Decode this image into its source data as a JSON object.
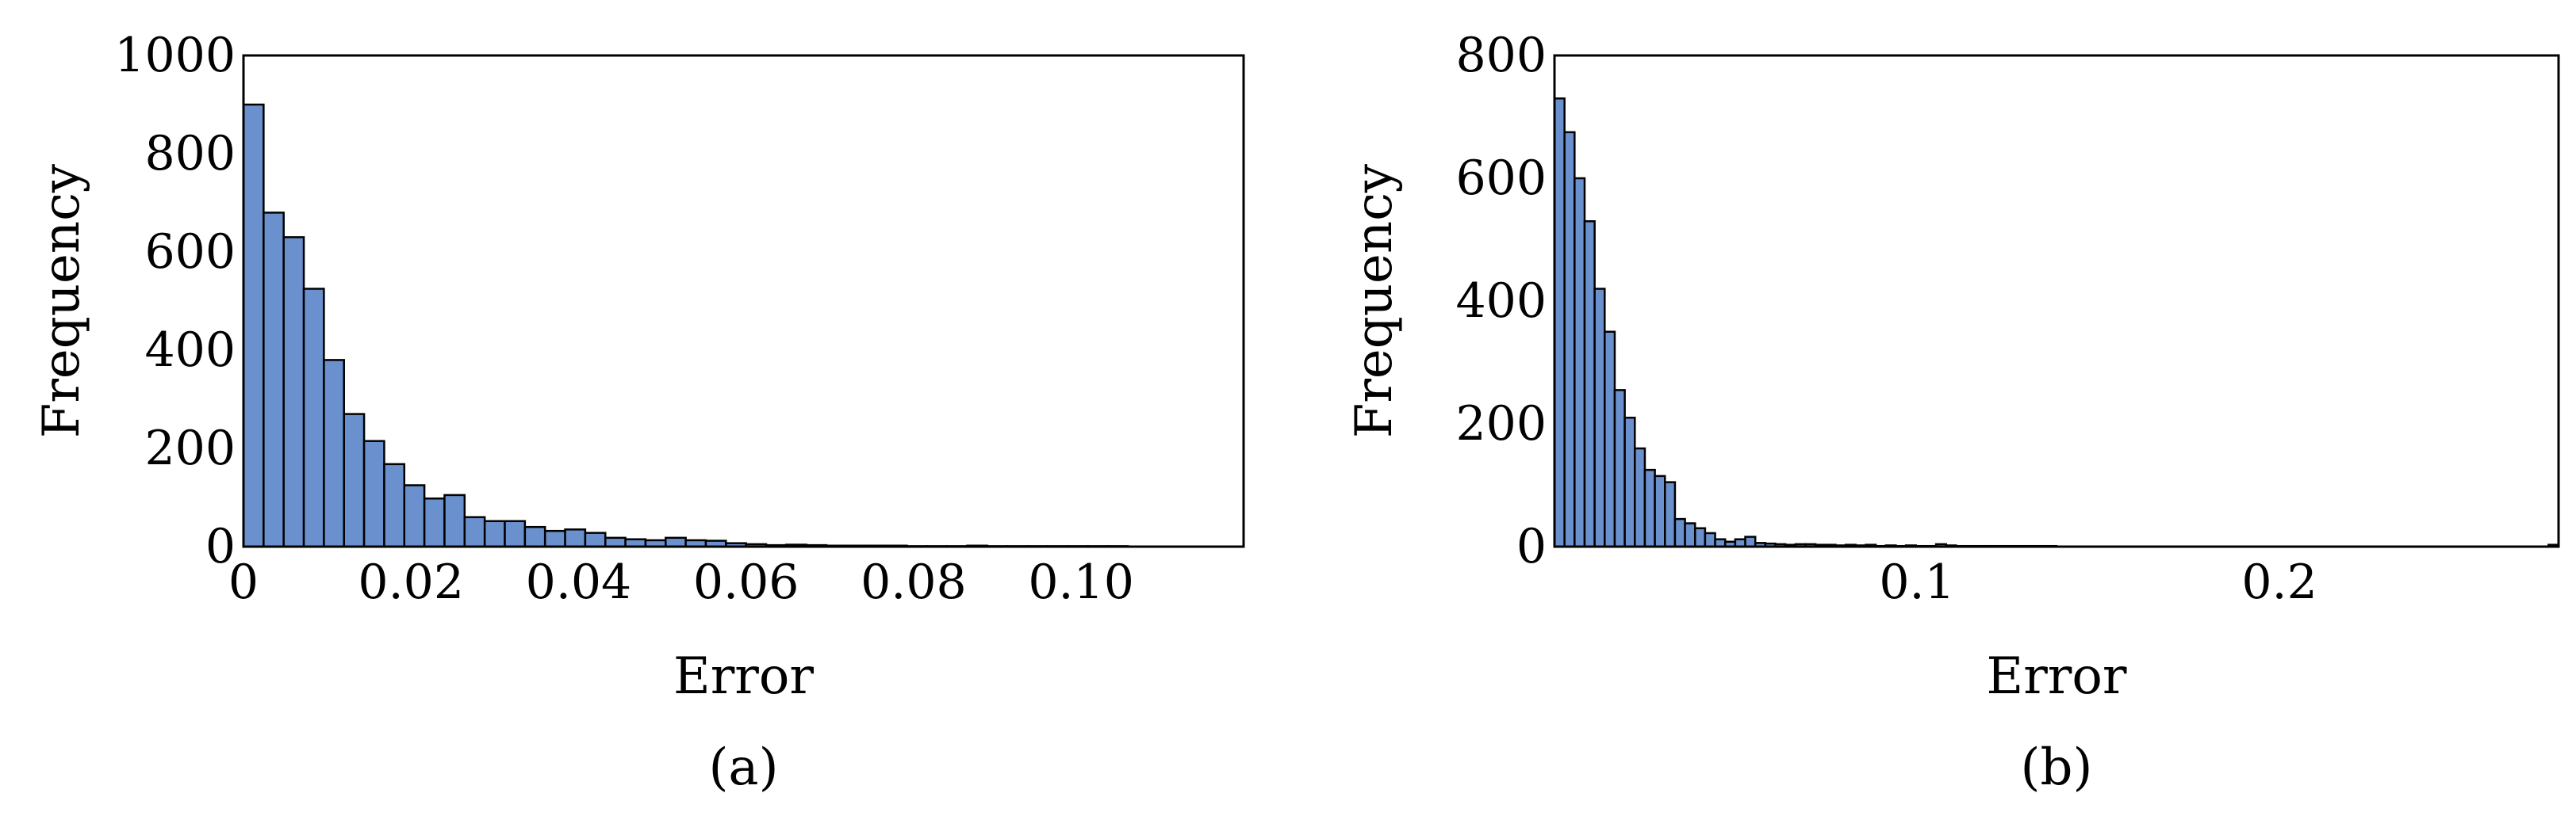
{
  "chart_data": [
    {
      "type": "bar",
      "panel_label": "(a)",
      "xlabel": "Error",
      "ylabel": "Frequency",
      "xlim": [
        0,
        0.1194
      ],
      "ylim": [
        0,
        1000
      ],
      "xticks": [
        0,
        0.02,
        0.04,
        0.06,
        0.08,
        0.1
      ],
      "xtick_labels": [
        "0",
        "0.02",
        "0.04",
        "0.06",
        "0.08",
        "0.10"
      ],
      "yticks": [
        0,
        200,
        400,
        600,
        800,
        1000
      ],
      "ytick_labels": [
        "0",
        "200",
        "400",
        "600",
        "800",
        "1000"
      ],
      "bin_start": 0,
      "bin_width": 0.0024,
      "values": [
        900,
        680,
        630,
        525,
        380,
        270,
        215,
        168,
        125,
        98,
        105,
        60,
        52,
        52,
        40,
        32,
        35,
        28,
        18,
        15,
        13,
        18,
        13,
        12,
        7,
        5,
        3,
        4,
        3,
        2,
        2,
        2,
        2,
        1,
        1,
        1,
        2,
        1,
        1,
        1,
        1,
        1,
        1,
        1,
        0,
        0,
        0,
        0,
        0,
        0,
        0,
        0,
        0,
        0,
        0,
        0,
        0,
        0,
        0,
        0,
        0,
        0,
        0,
        0,
        0,
        0,
        0,
        0,
        0,
        0,
        0,
        0,
        1
      ],
      "grid": false,
      "legend": "none"
    },
    {
      "type": "bar",
      "panel_label": "(b)",
      "xlabel": "Error",
      "ylabel": "Frequency",
      "xlim": [
        0,
        0.277
      ],
      "ylim": [
        0,
        800
      ],
      "xticks": [
        0.1,
        0.2
      ],
      "xtick_labels": [
        "0.1",
        "0.2"
      ],
      "yticks": [
        0,
        200,
        400,
        600,
        800
      ],
      "ytick_labels": [
        "0",
        "200",
        "400",
        "600",
        "800"
      ],
      "bin_start": 0,
      "bin_width": 0.00277,
      "values": [
        730,
        675,
        600,
        530,
        420,
        350,
        255,
        210,
        160,
        125,
        115,
        105,
        45,
        38,
        30,
        22,
        12,
        8,
        12,
        16,
        6,
        5,
        4,
        3,
        4,
        4,
        3,
        3,
        2,
        3,
        2,
        3,
        1,
        2,
        1,
        2,
        1,
        1,
        4,
        2,
        1,
        1,
        1,
        1,
        1,
        1,
        1,
        1,
        1,
        1,
        0,
        0,
        0,
        0,
        0,
        0,
        0,
        0,
        0,
        0,
        0,
        0,
        0,
        0,
        0,
        0,
        0,
        0,
        0,
        0,
        0,
        0,
        0,
        0,
        0,
        0,
        0,
        0,
        0,
        0,
        0,
        0,
        0,
        0,
        0,
        0,
        0,
        0,
        0,
        0,
        0,
        0,
        0,
        0,
        0,
        0,
        0,
        0,
        0,
        3
      ],
      "grid": false,
      "legend": "none"
    }
  ]
}
